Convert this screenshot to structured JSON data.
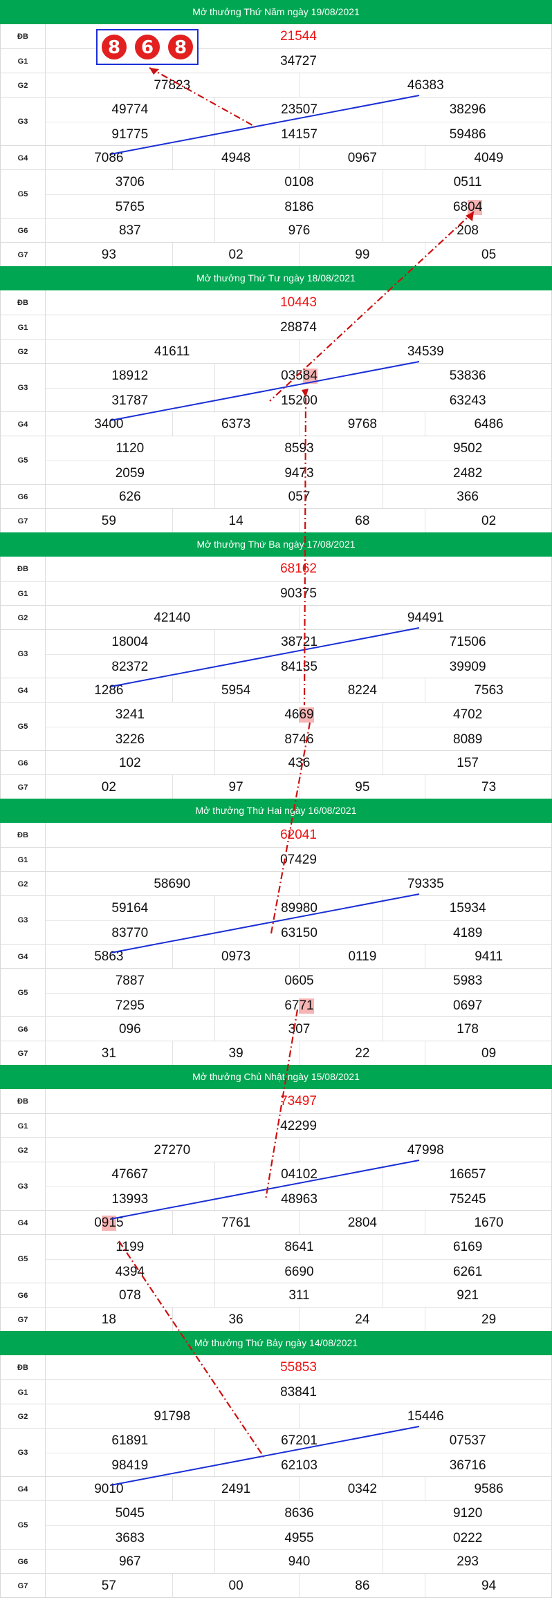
{
  "brand": {
    "header_color": "#00a651",
    "special_color": "#ee1111",
    "highlight_color": "#f7b4b4"
  },
  "badge": {
    "digits": [
      "8",
      "6",
      "8"
    ]
  },
  "days": [
    {
      "title": "Mở thưởng Thứ Năm ngày 19/08/2021",
      "rows": [
        {
          "label": "ĐB",
          "lines": [
            [
              "21544"
            ]
          ]
        },
        {
          "label": "G1",
          "lines": [
            [
              "34727"
            ]
          ]
        },
        {
          "label": "G2",
          "lines": [
            [
              "77823",
              "46383"
            ]
          ]
        },
        {
          "label": "G3",
          "lines": [
            [
              "49774",
              "23507",
              "38296"
            ],
            [
              "91775",
              "14157",
              "59486"
            ]
          ]
        },
        {
          "label": "G4",
          "lines": [
            [
              "7086",
              "4948",
              "0967",
              "4049"
            ]
          ]
        },
        {
          "label": "G5",
          "lines": [
            [
              "3706",
              "0108",
              "0511"
            ],
            [
              "5765",
              "8186",
              "6804"
            ]
          ]
        },
        {
          "label": "G6",
          "lines": [
            [
              "837",
              "976",
              "208"
            ]
          ]
        },
        {
          "label": "G7",
          "lines": [
            [
              "93",
              "02",
              "99",
              "05"
            ]
          ]
        }
      ]
    },
    {
      "title": "Mở thưởng Thứ Tư ngày 18/08/2021",
      "rows": [
        {
          "label": "ĐB",
          "lines": [
            [
              "10443"
            ]
          ]
        },
        {
          "label": "G1",
          "lines": [
            [
              "28874"
            ]
          ]
        },
        {
          "label": "G2",
          "lines": [
            [
              "41611",
              "34539"
            ]
          ]
        },
        {
          "label": "G3",
          "lines": [
            [
              "18912",
              "03584",
              "53836"
            ],
            [
              "31787",
              "15200",
              "63243"
            ]
          ]
        },
        {
          "label": "G4",
          "lines": [
            [
              "3400",
              "6373",
              "9768",
              "6486"
            ]
          ]
        },
        {
          "label": "G5",
          "lines": [
            [
              "1120",
              "8593",
              "9502"
            ],
            [
              "2059",
              "9473",
              "2482"
            ]
          ]
        },
        {
          "label": "G6",
          "lines": [
            [
              "626",
              "057",
              "366"
            ]
          ]
        },
        {
          "label": "G7",
          "lines": [
            [
              "59",
              "14",
              "68",
              "02"
            ]
          ]
        }
      ]
    },
    {
      "title": "Mở thưởng Thứ Ba ngày 17/08/2021",
      "rows": [
        {
          "label": "ĐB",
          "lines": [
            [
              "68162"
            ]
          ]
        },
        {
          "label": "G1",
          "lines": [
            [
              "90375"
            ]
          ]
        },
        {
          "label": "G2",
          "lines": [
            [
              "42140",
              "94491"
            ]
          ]
        },
        {
          "label": "G3",
          "lines": [
            [
              "18004",
              "38721",
              "71506"
            ],
            [
              "82372",
              "84135",
              "39909"
            ]
          ]
        },
        {
          "label": "G4",
          "lines": [
            [
              "1286",
              "5954",
              "8224",
              "7563"
            ]
          ]
        },
        {
          "label": "G5",
          "lines": [
            [
              "3241",
              "4669",
              "4702"
            ],
            [
              "3226",
              "8746",
              "8089"
            ]
          ]
        },
        {
          "label": "G6",
          "lines": [
            [
              "102",
              "436",
              "157"
            ]
          ]
        },
        {
          "label": "G7",
          "lines": [
            [
              "02",
              "97",
              "95",
              "73"
            ]
          ]
        }
      ]
    },
    {
      "title": "Mở thưởng Thứ Hai ngày 16/08/2021",
      "rows": [
        {
          "label": "ĐB",
          "lines": [
            [
              "62041"
            ]
          ]
        },
        {
          "label": "G1",
          "lines": [
            [
              "07429"
            ]
          ]
        },
        {
          "label": "G2",
          "lines": [
            [
              "58690",
              "79335"
            ]
          ]
        },
        {
          "label": "G3",
          "lines": [
            [
              "59164",
              "89980",
              "15934"
            ],
            [
              "83770",
              "63150",
              "4189"
            ]
          ]
        },
        {
          "label": "G4",
          "lines": [
            [
              "5863",
              "0973",
              "0119",
              "9411"
            ]
          ]
        },
        {
          "label": "G5",
          "lines": [
            [
              "7887",
              "0605",
              "5983"
            ],
            [
              "7295",
              "6771",
              "0697"
            ]
          ]
        },
        {
          "label": "G6",
          "lines": [
            [
              "096",
              "307",
              "178"
            ]
          ]
        },
        {
          "label": "G7",
          "lines": [
            [
              "31",
              "39",
              "22",
              "09"
            ]
          ]
        }
      ]
    },
    {
      "title": "Mở thưởng Chủ Nhật ngày 15/08/2021",
      "rows": [
        {
          "label": "ĐB",
          "lines": [
            [
              "73497"
            ]
          ]
        },
        {
          "label": "G1",
          "lines": [
            [
              "42299"
            ]
          ]
        },
        {
          "label": "G2",
          "lines": [
            [
              "27270",
              "47998"
            ]
          ]
        },
        {
          "label": "G3",
          "lines": [
            [
              "47667",
              "04102",
              "16657"
            ],
            [
              "13993",
              "48963",
              "75245"
            ]
          ]
        },
        {
          "label": "G4",
          "lines": [
            [
              "0915",
              "7761",
              "2804",
              "1670"
            ]
          ]
        },
        {
          "label": "G5",
          "lines": [
            [
              "1199",
              "8641",
              "6169"
            ],
            [
              "4394",
              "6690",
              "6261"
            ]
          ]
        },
        {
          "label": "G6",
          "lines": [
            [
              "078",
              "311",
              "921"
            ]
          ]
        },
        {
          "label": "G7",
          "lines": [
            [
              "18",
              "36",
              "24",
              "29"
            ]
          ]
        }
      ]
    },
    {
      "title": "Mở thưởng Thứ Bảy ngày 14/08/2021",
      "rows": [
        {
          "label": "ĐB",
          "lines": [
            [
              "55853"
            ]
          ]
        },
        {
          "label": "G1",
          "lines": [
            [
              "83841"
            ]
          ]
        },
        {
          "label": "G2",
          "lines": [
            [
              "91798",
              "15446"
            ]
          ]
        },
        {
          "label": "G3",
          "lines": [
            [
              "61891",
              "67201",
              "07537"
            ],
            [
              "98419",
              "62103",
              "36716"
            ]
          ]
        },
        {
          "label": "G4",
          "lines": [
            [
              "9010",
              "2491",
              "0342",
              "9586"
            ]
          ]
        },
        {
          "label": "G5",
          "lines": [
            [
              "5045",
              "8636",
              "9120"
            ],
            [
              "3683",
              "4955",
              "0222"
            ]
          ]
        },
        {
          "label": "G6",
          "lines": [
            [
              "967",
              "940",
              "293"
            ]
          ]
        },
        {
          "label": "G7",
          "lines": [
            [
              "57",
              "00",
              "86",
              "94"
            ]
          ]
        }
      ]
    }
  ]
}
